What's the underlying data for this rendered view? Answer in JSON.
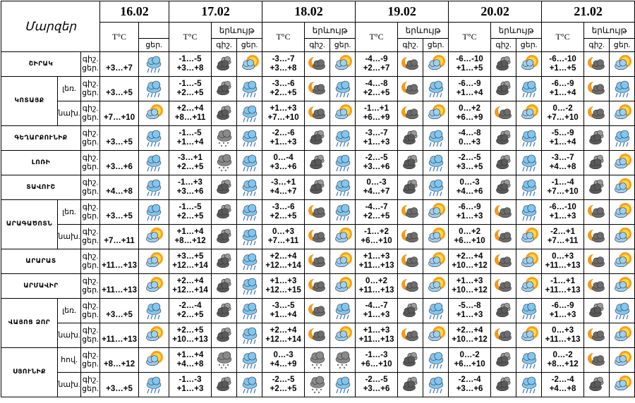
{
  "header": {
    "title": "Մարզեր",
    "dates": [
      "16.02",
      "17.02",
      "18.02",
      "19.02",
      "20.02",
      "21.02"
    ],
    "temp_label": "T°C",
    "phenomenon_label": "երևույթ",
    "night": "գիշ.",
    "day": "ցեր."
  },
  "regions": [
    {
      "name": "ՇԻՐԱԿ",
      "rows": [
        {
          "zone": null,
          "t16": "+3…+7",
          "days": [
            [
              "-1…-5",
              "+3…+8"
            ],
            [
              "-3…-7",
              "+3…+8"
            ],
            [
              "-4…-9",
              "+2…+7"
            ],
            [
              "-6…-10",
              "+1…+5"
            ],
            [
              "-6…-10",
              "+1…+5"
            ]
          ]
        }
      ]
    },
    {
      "name": "ԿՈՏԱՅՔ",
      "rows": [
        {
          "zone": "լեռ.",
          "t16": "+3…+5",
          "days": [
            [
              "-1…-5",
              "+2…+5"
            ],
            [
              "-3…-6",
              "+2…+5"
            ],
            [
              "-4…-8",
              "+2…+5"
            ],
            [
              "-6…-9",
              "+1…+4"
            ],
            [
              "-6…-9",
              "+1…+4"
            ]
          ]
        },
        {
          "zone": "նախ.",
          "t16": "+7…+10",
          "days": [
            [
              "+2…+4",
              "+8…+11"
            ],
            [
              "+1…+3",
              "+7…+10"
            ],
            [
              "-1…+1",
              "+6…+9"
            ],
            [
              "0…+2",
              "+6…+9"
            ],
            [
              "0…-2",
              "+7…+10"
            ]
          ]
        }
      ]
    },
    {
      "name": "ԳԵՂԱՐՔՈՒՆԻՔ",
      "rows": [
        {
          "zone": null,
          "t16": "+3…+5",
          "days": [
            [
              "-1…-5",
              "+1…+4"
            ],
            [
              "-2…-6",
              "+1…+3"
            ],
            [
              "-3…-7",
              "+1…+3"
            ],
            [
              "-4…-8",
              "0…+3"
            ],
            [
              "-5…-9",
              "+1…+4"
            ]
          ]
        }
      ]
    },
    {
      "name": "ԼՈՌԻ",
      "rows": [
        {
          "zone": null,
          "t16": "+3…+6",
          "days": [
            [
              "-3…+1",
              "+2…+5"
            ],
            [
              "0…-4",
              "+3…+6"
            ],
            [
              "-2…-5",
              "+3…+6"
            ],
            [
              "-2…-5",
              "+3…+5"
            ],
            [
              "-3…-7",
              "+4…+8"
            ]
          ]
        }
      ]
    },
    {
      "name": "ՏԱՎՈՒՇ",
      "rows": [
        {
          "zone": null,
          "t16": "+4…+8",
          "days": [
            [
              "-1…+3",
              "+3…+6"
            ],
            [
              "-3…+1",
              "+4…+7"
            ],
            [
              "0…-3",
              "+4…+7"
            ],
            [
              "0…-3",
              "+4…+6"
            ],
            [
              "-1…-4",
              "+7…+10"
            ]
          ]
        }
      ]
    },
    {
      "name": "ԱՐԱԳԱԾՈՏՆ",
      "rows": [
        {
          "zone": "լեռ.",
          "t16": "+3…+5",
          "days": [
            [
              "-1…-5",
              "+2…+5"
            ],
            [
              "-3…-6",
              "+2…+5"
            ],
            [
              "-4…-7",
              "+2…+5"
            ],
            [
              "-6…-9",
              "+1…+3"
            ],
            [
              "-6…-10",
              "+1…+3"
            ]
          ]
        },
        {
          "zone": "նախ.",
          "t16": "+7…+11",
          "days": [
            [
              "+1…+4",
              "+8…+12"
            ],
            [
              "0…+3",
              "+7…+11"
            ],
            [
              "-1…+2",
              "+6…+10"
            ],
            [
              "0…+2",
              "+6…+10"
            ],
            [
              "-2…+1",
              "+7…+11"
            ]
          ]
        }
      ]
    },
    {
      "name": "ԱՐԱՐԱՏ",
      "rows": [
        {
          "zone": null,
          "t16": "+11…+13",
          "days": [
            [
              "+3…+5",
              "+12…+14"
            ],
            [
              "+2…+4",
              "+12…+14"
            ],
            [
              "+1…+3",
              "+11…+13"
            ],
            [
              "+2…+4",
              "+10…+12"
            ],
            [
              "0…+3",
              "+11…+13"
            ]
          ]
        }
      ]
    },
    {
      "name": "ԱՐՄԱՎԻՐ",
      "rows": [
        {
          "zone": null,
          "t16": "+11…+13",
          "days": [
            [
              "+2…+4",
              "+12…+14"
            ],
            [
              "+1…+3",
              "+12…+15"
            ],
            [
              "0…+2",
              "+11…+13"
            ],
            [
              "+1…+3",
              "+10…+12"
            ],
            [
              "-1…+1",
              "+11…+13"
            ]
          ]
        }
      ]
    },
    {
      "name": "ՎԱՅՈՑ ՁՈՐ",
      "rows": [
        {
          "zone": "լեռ.",
          "t16": "+3…+5",
          "days": [
            [
              "-2…-4",
              "+2…+5"
            ],
            [
              "-3…-5",
              "+1…+4"
            ],
            [
              "-4…-7",
              "+1…+3"
            ],
            [
              "-5…-8",
              "+1…+3"
            ],
            [
              "-6…-9",
              "+1…+3"
            ]
          ]
        },
        {
          "zone": "նախ.",
          "t16": "+11…+13",
          "days": [
            [
              "+2…+5",
              "+10…+13"
            ],
            [
              "+2…+4",
              "+12…+14"
            ],
            [
              "+1…+3",
              "+11…+13"
            ],
            [
              "+2…+4",
              "+10…+12"
            ],
            [
              "0…+3",
              "+11…+13"
            ]
          ]
        }
      ]
    },
    {
      "name": "ՍՅՈՒՆԻՔ",
      "rows": [
        {
          "zone": "հով.",
          "t16": "+8…+12",
          "days": [
            [
              "+1…+4",
              "+4…+8"
            ],
            [
              "0…-3",
              "+4…+9"
            ],
            [
              "-1…-3",
              "+6…+10"
            ],
            [
              "0…-2",
              "+6…+10"
            ],
            [
              "0…-2",
              "+8…+12"
            ]
          ]
        },
        {
          "zone": "նախ.",
          "t16": "+3…+5",
          "days": [
            [
              "-1…-3",
              "+1…+3"
            ],
            [
              "-2…-5",
              "+2…+5"
            ],
            [
              "-2…-5",
              "+3…+6"
            ],
            [
              "-2…-4",
              "+3…+6"
            ],
            [
              "-2…-4",
              "+4…+8"
            ]
          ]
        }
      ]
    }
  ]
}
